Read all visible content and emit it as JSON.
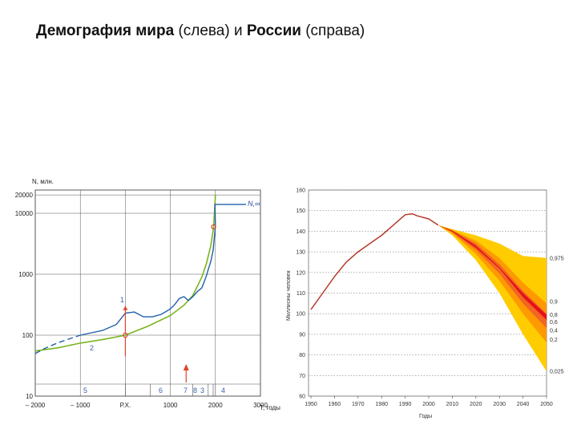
{
  "title": {
    "part1_bold": "Демография мира",
    "part2": " (слева) и ",
    "part3_bold": "России",
    "part4": " (справа)"
  },
  "colors": {
    "world_series": "#1f5fa8",
    "world_model": "#7ab51d",
    "russia_history": "#b63a2b",
    "fan_outer": "#ffcc00",
    "fan_mid": "#ff9900",
    "fan_inner": "#f26522",
    "fan_core": "#e4101a",
    "marker": "#e0442a"
  },
  "chart_data": [
    {
      "type": "line",
      "yscale": "log",
      "ylabel": "N, млн.",
      "xlabel": "T, годы",
      "xlim": [
        -2000,
        3000
      ],
      "ylim": [
        10,
        20000
      ],
      "x_ticks": [
        "– 2000",
        "– 1000",
        "Р.Х.",
        "1000",
        "2000",
        "3000"
      ],
      "y_ticks": [
        "10",
        "100",
        "1000",
        "10000",
        "20000"
      ],
      "annotations": [
        "N,∞",
        "1",
        "2",
        "3",
        "4",
        "5",
        "6",
        "7",
        "8"
      ],
      "series": [
        {
          "points": [
            [
              -2000,
              50
            ],
            [
              -1800,
              60
            ],
            [
              -1500,
              75
            ],
            [
              -1000,
              100
            ],
            [
              -500,
              120
            ],
            [
              -200,
              150
            ],
            [
              0,
              230
            ],
            [
              200,
              240
            ],
            [
              400,
              200
            ],
            [
              600,
              200
            ],
            [
              800,
              220
            ],
            [
              1000,
              270
            ],
            [
              1100,
              320
            ],
            [
              1200,
              400
            ],
            [
              1300,
              430
            ],
            [
              1400,
              370
            ],
            [
              1500,
              430
            ],
            [
              1600,
              520
            ],
            [
              1700,
              600
            ],
            [
              1750,
              750
            ],
            [
              1800,
              950
            ],
            [
              1850,
              1260
            ],
            [
              1900,
              1650
            ],
            [
              1950,
              2500
            ],
            [
              2000,
              6100
            ]
          ]
        },
        {
          "points": [
            [
              -2000,
              55
            ],
            [
              -1500,
              62
            ],
            [
              -1000,
              74
            ],
            [
              -500,
              85
            ],
            [
              0,
              100
            ],
            [
              500,
              140
            ],
            [
              1000,
              210
            ],
            [
              1300,
              310
            ],
            [
              1500,
              450
            ],
            [
              1700,
              900
            ],
            [
              1800,
              1500
            ],
            [
              1900,
              3000
            ],
            [
              1960,
              6000
            ],
            [
              2000,
              20000
            ]
          ]
        }
      ]
    },
    {
      "type": "area",
      "ylabel": "Миллионы человек",
      "xlabel": "Годы",
      "xlim": [
        1950,
        2050
      ],
      "ylim": [
        60,
        160
      ],
      "x_ticks": [
        "1950",
        "1960",
        "1970",
        "1980",
        "1990",
        "2000",
        "2010",
        "2020",
        "2030",
        "2040",
        "2050"
      ],
      "y_ticks": [
        "60",
        "70",
        "80",
        "90",
        "100",
        "110",
        "120",
        "130",
        "140",
        "150",
        "160"
      ],
      "quantile_labels": [
        "0,975",
        "0,9",
        "0,8",
        "0,6",
        "0,4",
        "0,2",
        "0,025"
      ],
      "history": {
        "x": [
          1950,
          1955,
          1960,
          1965,
          1970,
          1975,
          1980,
          1985,
          1990,
          1993,
          1995,
          2000,
          2004
        ],
        "y": [
          102,
          110,
          118,
          125,
          130,
          134,
          138,
          143,
          148,
          148.5,
          147.5,
          146,
          143
        ]
      },
      "forecast_x": [
        2004,
        2010,
        2020,
        2030,
        2040,
        2050
      ],
      "bands": [
        {
          "lower": [
            143,
            138,
            126,
            110,
            90,
            72
          ],
          "upper": [
            143,
            141,
            138,
            134,
            128,
            127
          ]
        },
        {
          "lower": [
            143,
            139,
            129,
            116,
            100,
            86
          ],
          "upper": [
            143,
            140.5,
            135.5,
            127,
            115,
            105
          ]
        },
        {
          "lower": [
            143,
            139.5,
            131,
            119.5,
            105,
            93
          ],
          "upper": [
            143,
            140.5,
            134,
            124,
            111,
            100
          ]
        },
        {
          "lower": [
            143,
            139.8,
            132,
            122,
            108,
            97
          ],
          "upper": [
            143,
            140.2,
            133,
            122.5,
            110,
            99.5
          ]
        }
      ]
    }
  ]
}
